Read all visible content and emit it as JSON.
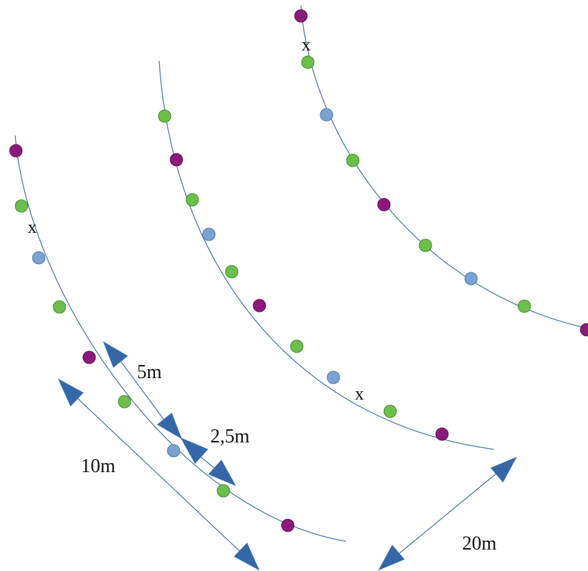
{
  "colors": {
    "background": "#ffffff",
    "curve": "#3a6fb0",
    "arrow": "#3567a8",
    "dot_purple": "#8b1a7a",
    "dot_green": "#6cbf4a",
    "dot_blue": "#7aa3d4"
  },
  "labels": {
    "spacing_5m": "5m",
    "spacing_2_5m": "2,5m",
    "row_10m": "10m",
    "row_20m": "20m"
  },
  "markers": {
    "x1": "x",
    "x2": "x",
    "x3": "x"
  },
  "rows": [
    {
      "name": "left",
      "dots": [
        "purple",
        "green",
        "blue",
        "green",
        "purple",
        "green",
        "blue",
        "green",
        "purple"
      ]
    },
    {
      "name": "middle",
      "dots": [
        "green",
        "purple",
        "green",
        "blue",
        "green",
        "purple",
        "green",
        "blue",
        "green",
        "purple"
      ]
    },
    {
      "name": "right",
      "dots": [
        "purple",
        "green",
        "blue",
        "green",
        "purple",
        "green",
        "blue",
        "green",
        "purple"
      ]
    }
  ]
}
